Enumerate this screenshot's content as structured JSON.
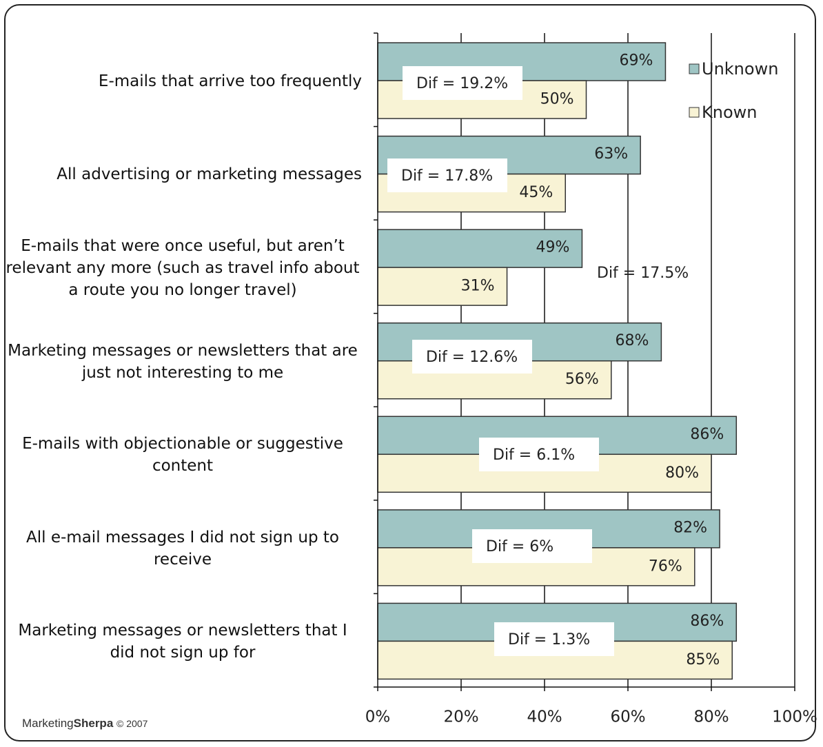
{
  "chart_data": {
    "type": "bar",
    "orientation": "horizontal",
    "categories": [
      "E-mails that arrive too frequently",
      "All advertising or marketing messages",
      "E-mails that were once useful, but aren’t relevant any more (such as travel info about a route you no longer travel)",
      "Marketing messages or newsletters that are just not interesting to me",
      "E-mails with objectionable or suggestive content",
      "All e-mail messages I did not sign up to receive",
      "Marketing messages or newsletters that I did not sign up for"
    ],
    "series": [
      {
        "name": "Unknown",
        "color": "#9fc5c4",
        "values": [
          69,
          63,
          49,
          68,
          86,
          82,
          86
        ],
        "value_labels": [
          "69%",
          "63%",
          "49%",
          "68%",
          "86%",
          "82%",
          "86%"
        ]
      },
      {
        "name": "Known",
        "color": "#f8f3d5",
        "values": [
          50,
          45,
          31,
          56,
          80,
          76,
          85
        ],
        "value_labels": [
          "50%",
          "45%",
          "31%",
          "56%",
          "80%",
          "76%",
          "85%"
        ]
      }
    ],
    "annotations": [
      "Dif = 19.2%",
      "Dif = 17.8%",
      "Dif = 17.5%",
      "Dif = 12.6%",
      "Dif = 6.1%",
      "Dif = 6%",
      "Dif = 1.3%"
    ],
    "xlim": [
      0,
      100
    ],
    "xticks": [
      {
        "value": 0,
        "label": "0%"
      },
      {
        "value": 20,
        "label": "20%"
      },
      {
        "value": 40,
        "label": "40%"
      },
      {
        "value": 60,
        "label": "60%"
      },
      {
        "value": 80,
        "label": "80%"
      },
      {
        "value": 100,
        "label": "100%"
      }
    ],
    "grid": true,
    "legend": "upper right",
    "source": {
      "brand": [
        "Marketing",
        "Sherpa"
      ],
      "copyright": "© 2007"
    }
  }
}
